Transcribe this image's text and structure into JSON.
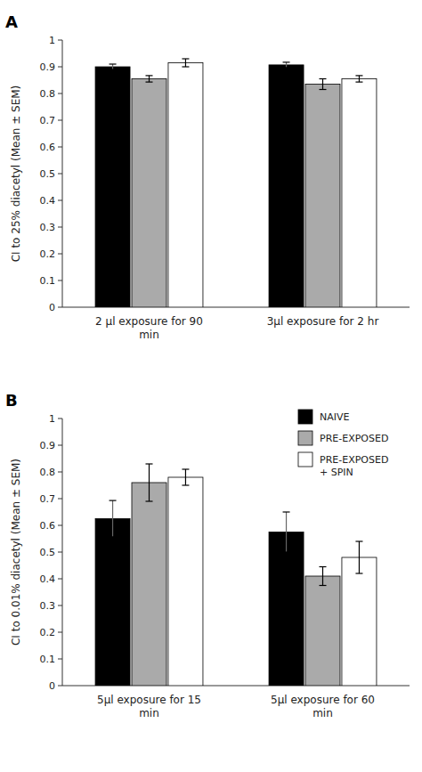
{
  "chart_data": [
    {
      "type": "bar",
      "title": "A",
      "ylabel": "CI to 25% diacetyl (Mean ± SEM)",
      "categories": [
        "2 μl exposure for 90\nmin",
        "3μl exposure for 2 hr"
      ],
      "series": [
        {
          "color": "#000000",
          "values": [
            0.9,
            0.907
          ],
          "errors": [
            0.01,
            0.01
          ]
        },
        {
          "color": "#aaaaaa",
          "values": [
            0.855,
            0.835
          ],
          "errors": [
            0.012,
            0.02
          ]
        },
        {
          "color": "#ffffff",
          "values": [
            0.915,
            0.855
          ],
          "errors": [
            0.015,
            0.012
          ]
        }
      ],
      "ylim": [
        0,
        1
      ],
      "yticks": [
        0,
        0.1,
        0.2,
        0.3,
        0.4,
        0.5,
        0.6,
        0.7,
        0.8,
        0.9,
        1
      ],
      "grid": false
    },
    {
      "type": "bar",
      "title": "B",
      "ylabel": "CI to 0.01% diacetyl (Mean ± SEM)",
      "categories": [
        "5μl exposure for 15\nmin",
        "5μl exposure for 60\nmin"
      ],
      "series": [
        {
          "name": "NAIVE",
          "color": "#000000",
          "values": [
            0.625,
            0.575
          ],
          "errors": [
            0.068,
            0.075
          ]
        },
        {
          "name": "PRE-EXPOSED",
          "color": "#aaaaaa",
          "values": [
            0.76,
            0.41
          ],
          "errors": [
            0.07,
            0.035
          ]
        },
        {
          "name": "PRE-EXPOSED\n+ SPIN",
          "color": "#ffffff",
          "values": [
            0.78,
            0.48
          ],
          "errors": [
            0.03,
            0.06
          ]
        }
      ],
      "ylim": [
        0,
        1
      ],
      "yticks": [
        0,
        0.1,
        0.2,
        0.3,
        0.4,
        0.5,
        0.6,
        0.7,
        0.8,
        0.9,
        1
      ],
      "grid": false,
      "legend": "upper right"
    }
  ]
}
